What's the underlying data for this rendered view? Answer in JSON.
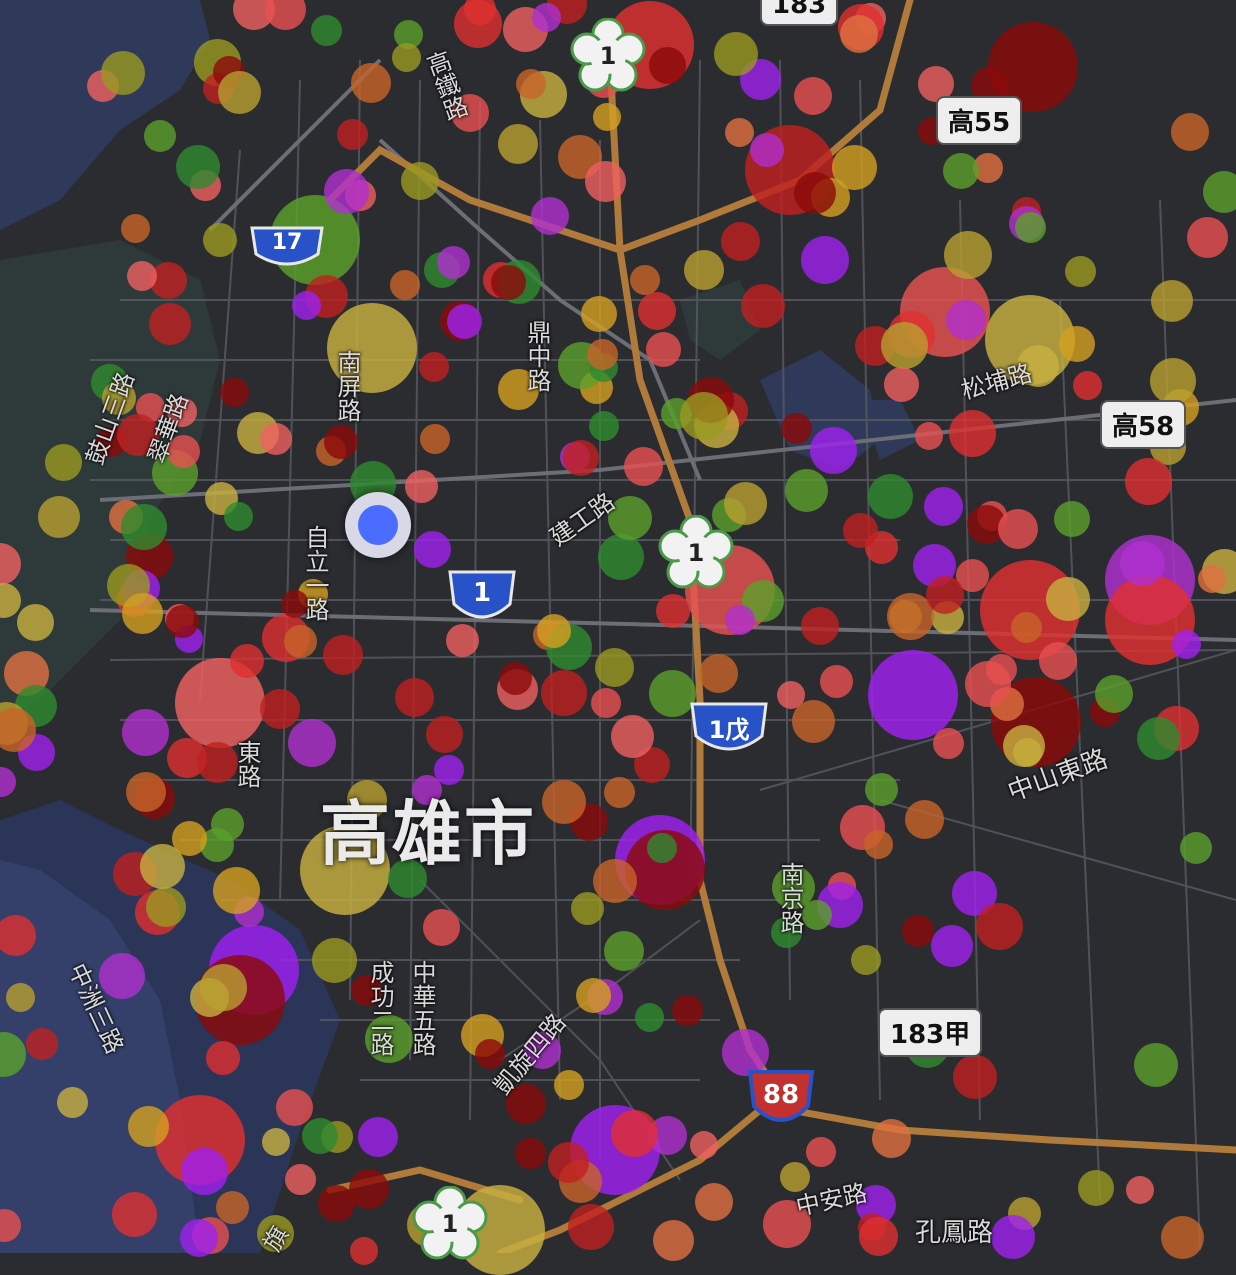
{
  "map": {
    "city_label": "高雄市",
    "road_labels": [
      {
        "text": "高鐵路"
      },
      {
        "text": "鼓山三路"
      },
      {
        "text": "翠華路"
      },
      {
        "text": "南屏路"
      },
      {
        "text": "鼎中路"
      },
      {
        "text": "建工路"
      },
      {
        "text": "自立一路"
      },
      {
        "text": "東路"
      },
      {
        "text": "中山東路"
      },
      {
        "text": "南京路"
      },
      {
        "text": "凱旋四路"
      },
      {
        "text": "中華五路"
      },
      {
        "text": "成功二路"
      },
      {
        "text": "中洲三路"
      },
      {
        "text": "中安路"
      },
      {
        "text": "孔鳳路"
      },
      {
        "text": "松埔路"
      },
      {
        "text": "旗"
      }
    ],
    "highway_labels": [
      {
        "text": "183"
      },
      {
        "text": "高55"
      },
      {
        "text": "高58"
      },
      {
        "text": "183甲"
      }
    ],
    "route_shields": [
      {
        "text": "17"
      },
      {
        "text": "1"
      },
      {
        "text": "1戊"
      },
      {
        "text": "88"
      }
    ],
    "flower_markers": [
      {
        "text": "1"
      },
      {
        "text": "1"
      },
      {
        "text": "1"
      }
    ],
    "colors": {
      "background": "#2b2c30",
      "water": "#2f3a5a",
      "park": "#2e3a3a",
      "road": "#55575e",
      "highway": "#b07a3a",
      "location": "#4b6dff"
    },
    "point_palette": [
      "#e03030",
      "#c02020",
      "#8b0a0a",
      "#e85050",
      "#f06060",
      "#a020f0",
      "#b030d0",
      "#d4a020",
      "#c8b040",
      "#b8a030",
      "#2e8b2e",
      "#5aa02a",
      "#e07040",
      "#c86428",
      "#9a9a20"
    ]
  }
}
